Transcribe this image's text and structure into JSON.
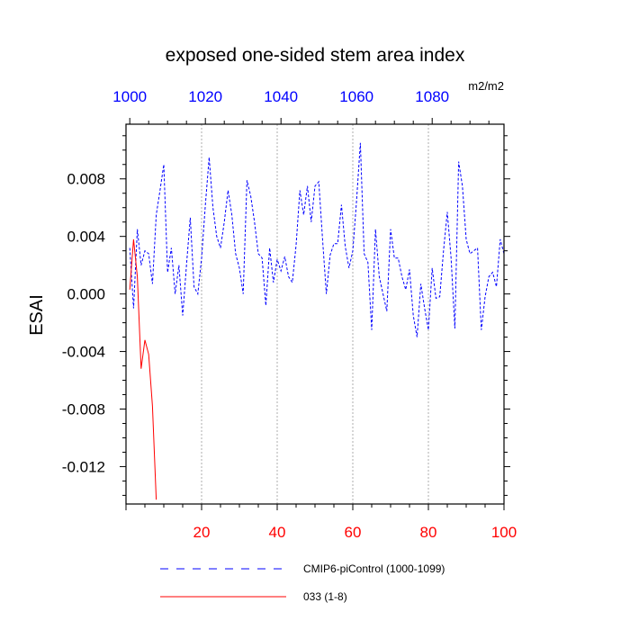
{
  "chart_data": {
    "type": "line",
    "title": "exposed one-sided stem area index",
    "units": "m2/m2",
    "ylabel": "ESAI",
    "xlim": [
      0,
      100
    ],
    "ylim": [
      -0.0146,
      0.0118
    ],
    "x_ticks": [
      20,
      40,
      60,
      80,
      100
    ],
    "x_tick_labels": [
      "20",
      "40",
      "60",
      "80",
      "100"
    ],
    "x_tick_color": "#ff0000",
    "top_ticks": [
      1,
      21,
      41,
      61,
      81
    ],
    "top_tick_labels": [
      "1000",
      "1020",
      "1040",
      "1060",
      "1080"
    ],
    "top_tick_color": "#0000ff",
    "y_ticks": [
      0.008,
      0.004,
      0.0,
      -0.004,
      -0.008,
      -0.012
    ],
    "y_tick_labels": [
      "0.008",
      "0.004",
      "0.000",
      "-0.004",
      "-0.008",
      "-0.012"
    ],
    "grid_x": [
      20,
      40,
      60,
      80
    ],
    "legend_position": "bottom",
    "series": [
      {
        "name": "CMIP6-piControl (1000-1099)",
        "color": "#0000ff",
        "style": "dashed",
        "x": [
          1,
          2,
          3,
          4,
          5,
          6,
          7,
          8,
          9,
          10,
          11,
          12,
          13,
          14,
          15,
          16,
          17,
          18,
          19,
          20,
          21,
          22,
          23,
          24,
          25,
          26,
          27,
          28,
          29,
          30,
          31,
          32,
          33,
          34,
          35,
          36,
          37,
          38,
          39,
          40,
          41,
          42,
          43,
          44,
          45,
          46,
          47,
          48,
          49,
          50,
          51,
          52,
          53,
          54,
          55,
          56,
          57,
          58,
          59,
          60,
          61,
          62,
          63,
          64,
          65,
          66,
          67,
          68,
          69,
          70,
          71,
          72,
          73,
          74,
          75,
          76,
          77,
          78,
          79,
          80,
          81,
          82,
          83,
          84,
          85,
          86,
          87,
          88,
          89,
          90,
          91,
          92,
          93,
          94,
          95,
          96,
          97,
          98,
          99,
          100
        ],
        "y": [
          0.0032,
          -0.001,
          0.0045,
          0.002,
          0.003,
          0.0028,
          0.0007,
          0.0055,
          0.0072,
          0.009,
          0.0015,
          0.0032,
          0.0,
          0.002,
          -0.0015,
          0.002,
          0.0053,
          0.0005,
          0.0,
          0.0025,
          0.0062,
          0.0095,
          0.006,
          0.004,
          0.0032,
          0.005,
          0.0072,
          0.0055,
          0.0028,
          0.0018,
          0.0,
          0.0079,
          0.0068,
          0.005,
          0.0028,
          0.0025,
          -0.0008,
          0.0032,
          0.0008,
          0.0024,
          0.0016,
          0.0026,
          0.0012,
          0.0008,
          0.0034,
          0.0072,
          0.0055,
          0.0075,
          0.005,
          0.0075,
          0.0078,
          0.0038,
          0.0,
          0.0027,
          0.0035,
          0.0035,
          0.0062,
          0.0033,
          0.0018,
          0.003,
          0.0065,
          0.0105,
          0.0028,
          0.0022,
          -0.0025,
          0.0045,
          0.0012,
          0.0,
          -0.0012,
          0.0045,
          0.0025,
          0.0025,
          0.0012,
          0.0003,
          0.0017,
          -0.0015,
          -0.003,
          0.0007,
          -0.001,
          -0.0025,
          0.0018,
          -0.0003,
          -0.0002,
          0.003,
          0.0057,
          0.0025,
          -0.0024,
          0.0092,
          0.0075,
          0.0038,
          0.0028,
          0.003,
          0.0032,
          -0.0025,
          -0.0002,
          0.0012,
          0.0015,
          0.0005,
          0.0038,
          0.0028
        ]
      },
      {
        "name": "033 (1-8)",
        "color": "#ff0000",
        "style": "solid",
        "x": [
          1,
          2,
          3,
          4,
          5,
          6,
          7,
          8
        ],
        "y": [
          0.0003,
          0.0038,
          0.0012,
          -0.0052,
          -0.0032,
          -0.0042,
          -0.0078,
          -0.0143
        ]
      }
    ]
  }
}
